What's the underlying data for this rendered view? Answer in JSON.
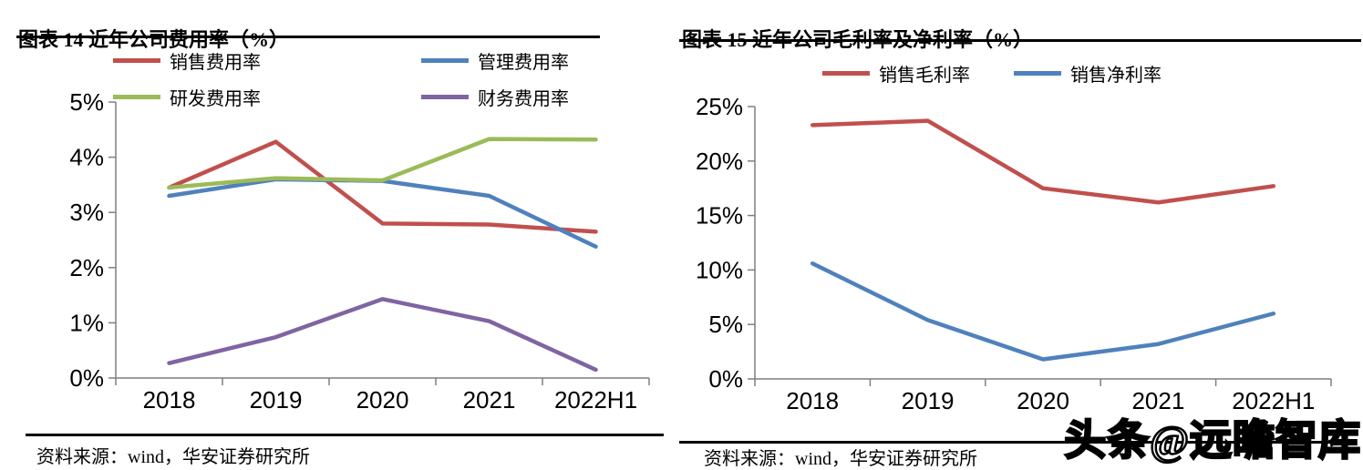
{
  "page": {
    "watermark": "头条@远瞻智库"
  },
  "chart_data": [
    {
      "type": "line",
      "title": "图表 14 近年公司费用率（%）",
      "xlabel": "",
      "ylabel": "",
      "categories": [
        "2018",
        "2019",
        "2020",
        "2021",
        "2022H1"
      ],
      "series": [
        {
          "name": "销售费用率",
          "color": "#C0504D",
          "values": [
            3.45,
            4.28,
            2.8,
            2.78,
            2.65
          ]
        },
        {
          "name": "管理费用率",
          "color": "#4F81BD",
          "values": [
            3.3,
            3.6,
            3.57,
            3.3,
            2.38
          ]
        },
        {
          "name": "研发费用率",
          "color": "#9BBB59",
          "values": [
            3.45,
            3.62,
            3.58,
            4.33,
            4.32
          ]
        },
        {
          "name": "财务费用率",
          "color": "#8064A2",
          "values": [
            0.27,
            0.74,
            1.43,
            1.03,
            0.15
          ]
        }
      ],
      "ylim": [
        0,
        5
      ],
      "ytick_step": 1,
      "ytick_suffix": "%",
      "legend_position": "top",
      "grid": false,
      "source": "资料来源：wind，华安证券研究所"
    },
    {
      "type": "line",
      "title": "图表 15 近年公司毛利率及净利率（%）",
      "xlabel": "",
      "ylabel": "",
      "categories": [
        "2018",
        "2019",
        "2020",
        "2021",
        "2022H1"
      ],
      "series": [
        {
          "name": "销售毛利率",
          "color": "#C0504D",
          "values": [
            23.3,
            23.7,
            17.5,
            16.2,
            17.7
          ]
        },
        {
          "name": "销售净利率",
          "color": "#4F81BD",
          "values": [
            10.6,
            5.4,
            1.8,
            3.2,
            6.0
          ]
        }
      ],
      "ylim": [
        0,
        25
      ],
      "ytick_step": 5,
      "ytick_suffix": "%",
      "legend_position": "top",
      "grid": false,
      "source": "资料来源：wind，华安证券研究所"
    }
  ]
}
